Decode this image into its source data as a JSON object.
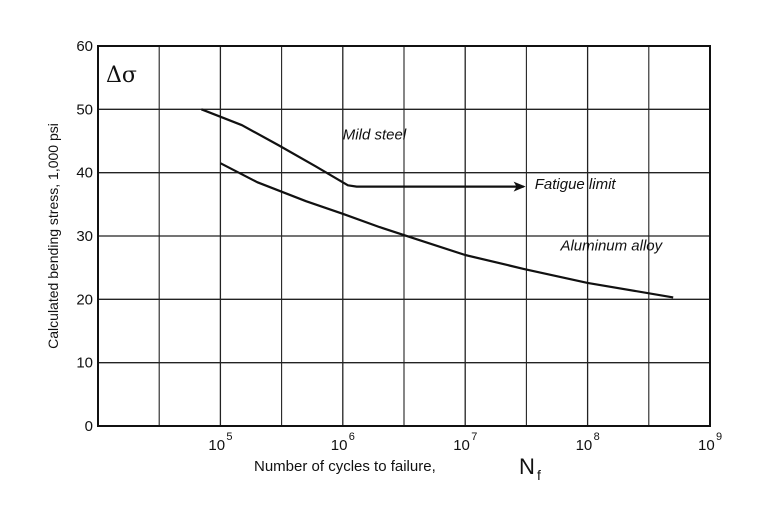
{
  "chart_data": {
    "type": "line",
    "x_scale": "log",
    "xlim": [
      10000,
      1000000000
    ],
    "ylim": [
      0,
      60
    ],
    "grid": true,
    "x_ticks": [
      {
        "value": 100000,
        "base": "10",
        "exp": "5"
      },
      {
        "value": 1000000,
        "base": "10",
        "exp": "6"
      },
      {
        "value": 10000000,
        "base": "10",
        "exp": "7"
      },
      {
        "value": 100000000,
        "base": "10",
        "exp": "8"
      },
      {
        "value": 1000000000,
        "base": "10",
        "exp": "9"
      }
    ],
    "y_ticks": [
      "0",
      "10",
      "20",
      "30",
      "40",
      "50",
      "60"
    ],
    "xlabel": "Number of cycles to failure,",
    "xlabel_symbol": "N",
    "xlabel_subscript": "f",
    "ylabel": "Calculated bending stress, 1,000 psi",
    "corner_label": "Δσ",
    "series": [
      {
        "name": "Mild steel",
        "points": [
          [
            70000,
            50
          ],
          [
            150000,
            47.5
          ],
          [
            300000,
            44.3
          ],
          [
            600000,
            41
          ],
          [
            1100000,
            38
          ],
          [
            1300000,
            37.8
          ],
          [
            10000000,
            37.8
          ],
          [
            30000000,
            37.8
          ]
        ]
      },
      {
        "name": "Aluminum alloy",
        "points": [
          [
            100000,
            41.5
          ],
          [
            200000,
            38.5
          ],
          [
            500000,
            35.5
          ],
          [
            1000000,
            33.5
          ],
          [
            2000000,
            31.4
          ],
          [
            4000000,
            29.5
          ],
          [
            10000000,
            27
          ],
          [
            30000000,
            24.8
          ],
          [
            100000000,
            22.6
          ],
          [
            500000000,
            20.3
          ]
        ]
      }
    ],
    "annotations": [
      {
        "text": "Mild steel",
        "x": 1000000,
        "y": 45.2
      },
      {
        "text": "Fatigue limit",
        "x": 37000000,
        "y": 37.4
      },
      {
        "text": "Aluminum alloy",
        "x": 60000000,
        "y": 27.7
      }
    ]
  }
}
